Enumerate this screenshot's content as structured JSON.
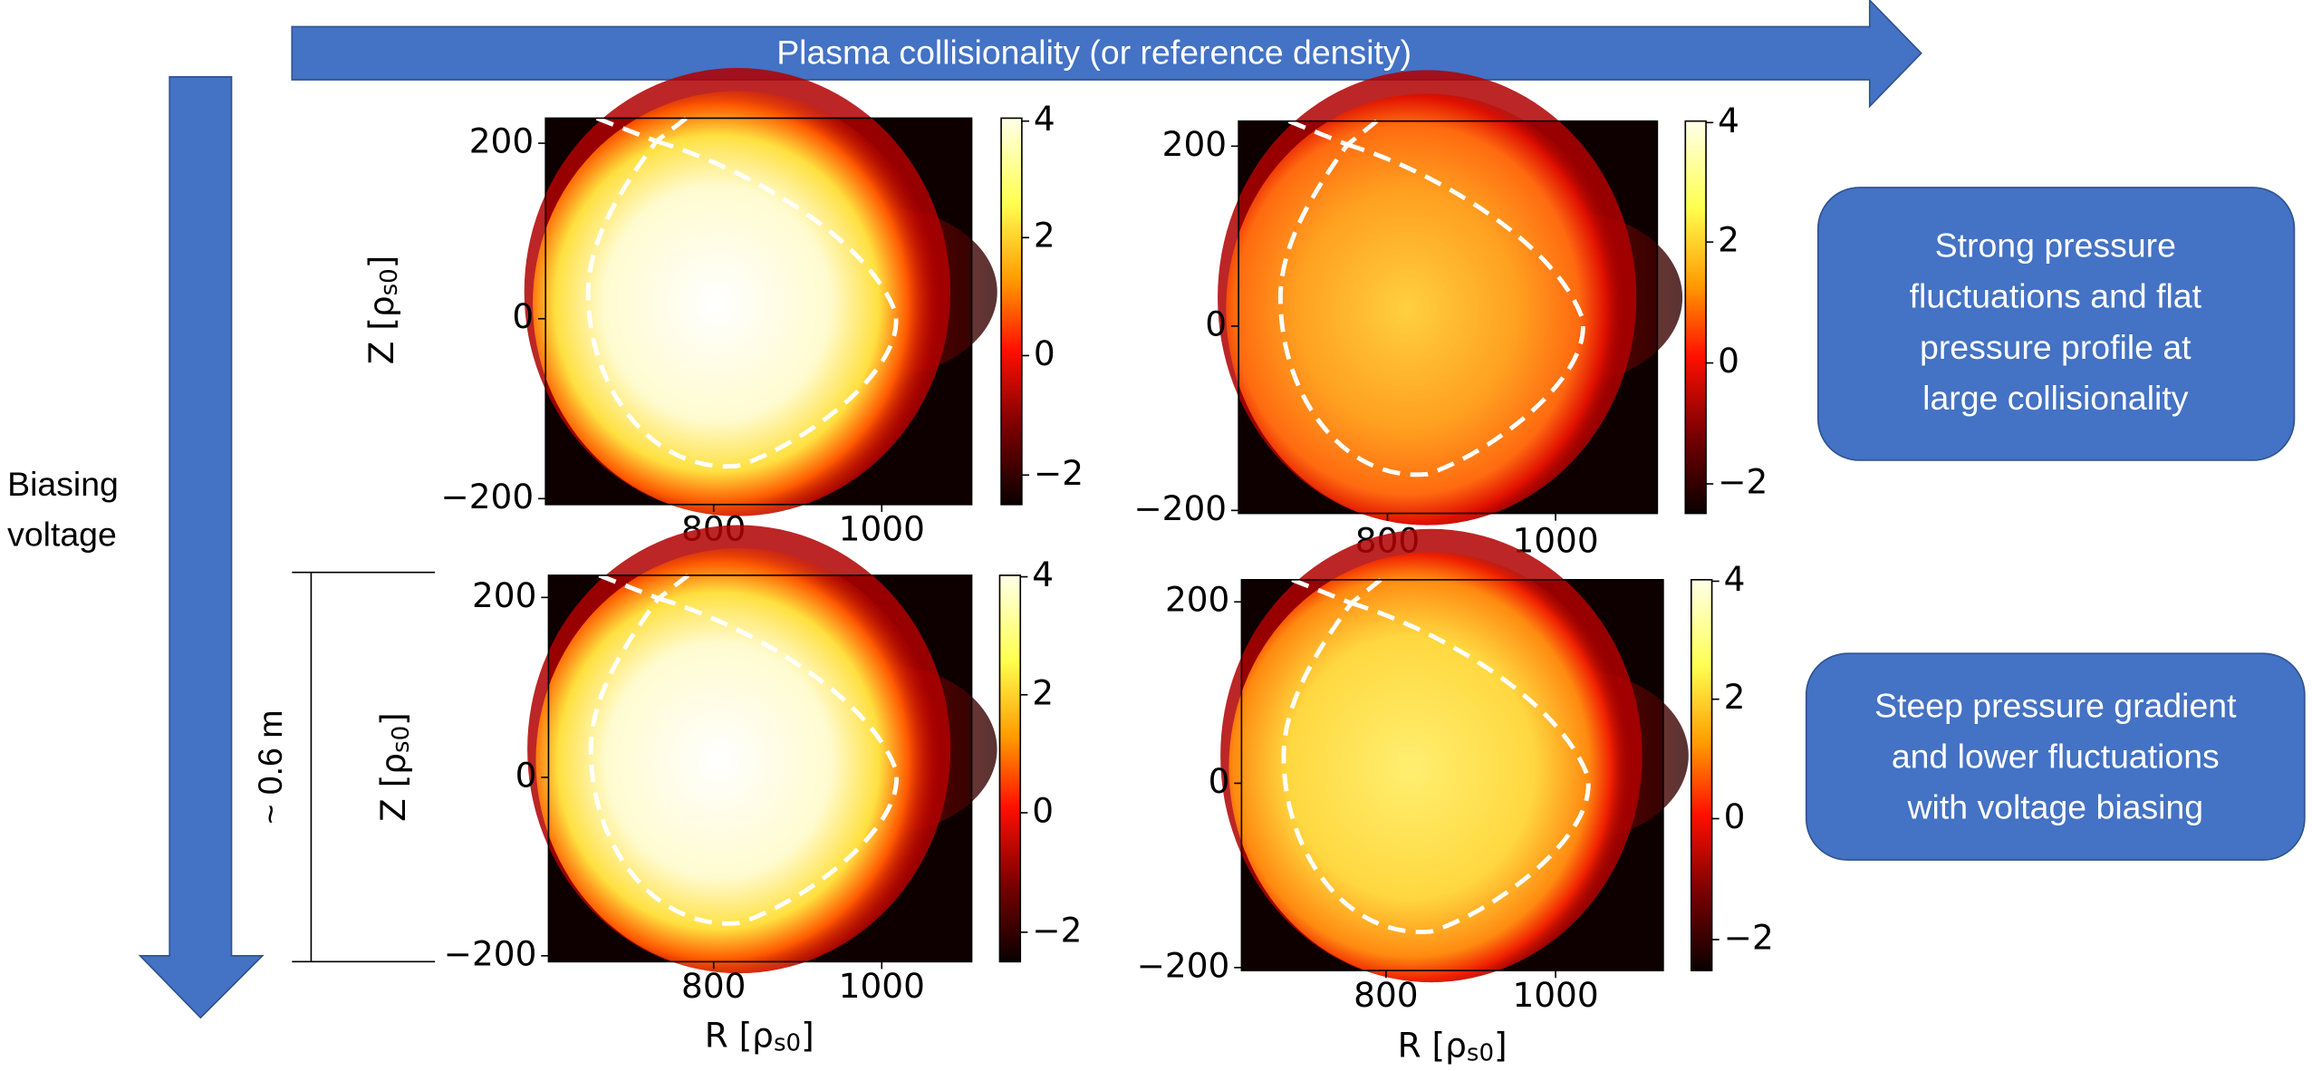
{
  "header_arrow": {
    "label": "Plasma collisionality (or reference density)"
  },
  "side_arrow": {
    "label": [
      "Biasing",
      "voltage"
    ]
  },
  "scale_bar": {
    "label": "~ 0.6 m"
  },
  "panels": [
    {
      "xticks": [
        "800",
        "1000"
      ],
      "yticks": [
        "200",
        "0",
        "−200"
      ],
      "colorbar_ticks": [
        "4",
        "2",
        "0",
        "−2"
      ],
      "ylabel": [
        "Z [ρ",
        "s0",
        "]"
      ]
    },
    {
      "xticks": [
        "800",
        "1000"
      ],
      "yticks": [
        "200",
        "0",
        "−200"
      ],
      "colorbar_ticks": [
        "4",
        "2",
        "0",
        "−2"
      ]
    },
    {
      "xticks": [
        "800",
        "1000"
      ],
      "yticks": [
        "200",
        "0",
        "−200"
      ],
      "colorbar_ticks": [
        "4",
        "2",
        "0",
        "−2"
      ],
      "ylabel": [
        "Z [ρ",
        "s0",
        "]"
      ],
      "xlabel": [
        "R [ρ",
        "s0",
        "]"
      ]
    },
    {
      "xticks": [
        "800",
        "1000"
      ],
      "yticks": [
        "200",
        "0",
        "−200"
      ],
      "colorbar_ticks": [
        "4",
        "2",
        "0",
        "−2"
      ],
      "xlabel": [
        "R [ρ",
        "s0",
        "]"
      ]
    }
  ],
  "notes": [
    {
      "lines": [
        "Strong pressure",
        "fluctuations and flat",
        "pressure profile at",
        "large collisionality"
      ]
    },
    {
      "lines": [
        "Steep pressure gradient",
        "and lower fluctuations",
        "with voltage biasing"
      ]
    }
  ]
}
